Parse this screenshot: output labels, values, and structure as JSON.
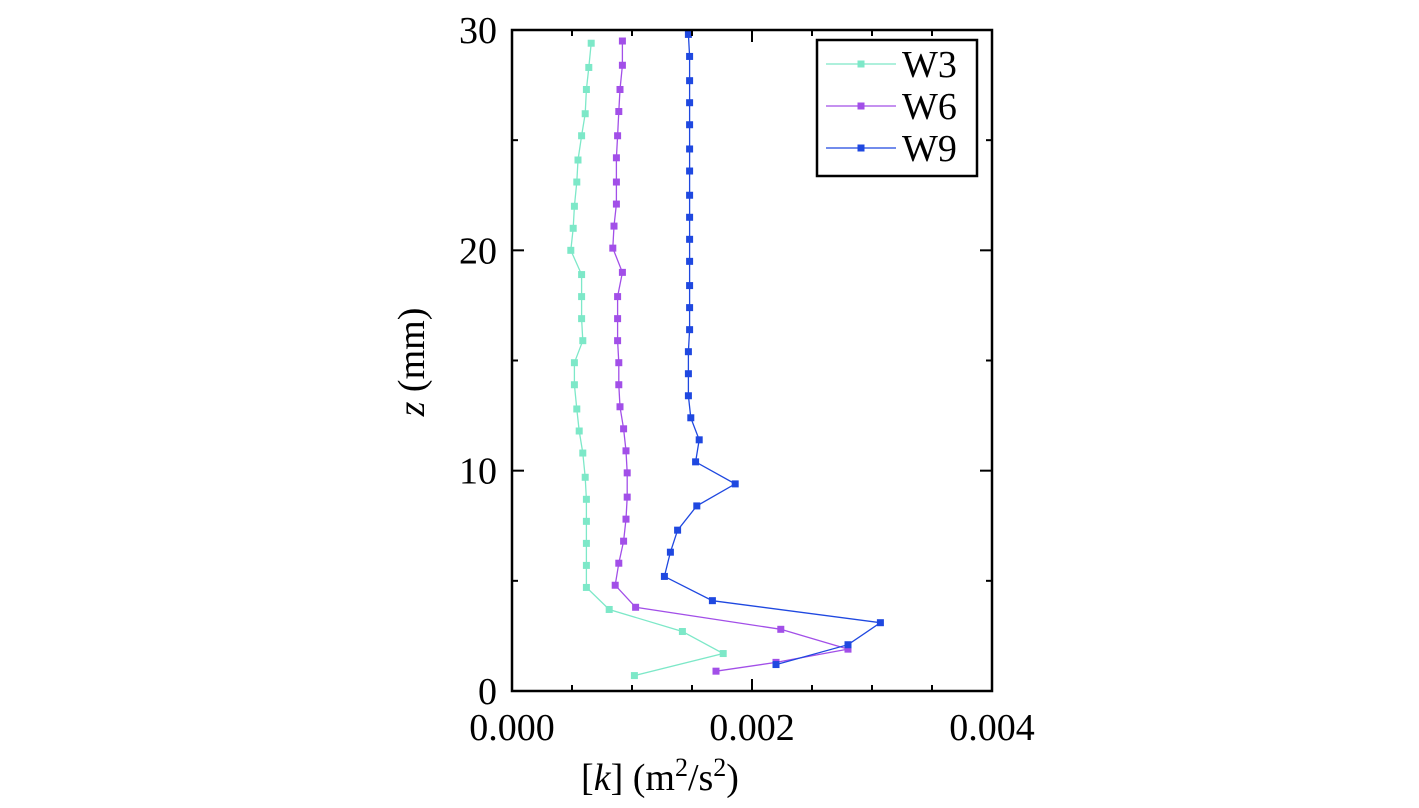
{
  "chart_data": {
    "type": "line",
    "title": "",
    "xlabel": "[k] (m2/s2)",
    "xlabel_parts": {
      "bracket_open": "[",
      "var": "k",
      "bracket_close": "]",
      "unit_open": " (m",
      "unit_sup1": "2",
      "unit_mid": "/s",
      "unit_sup2": "2",
      "unit_close": ")"
    },
    "ylabel": "z (mm)",
    "ylabel_parts": {
      "var": "z",
      "unit": " (mm)"
    },
    "xlim": [
      0.0,
      0.004
    ],
    "ylim": [
      0,
      30
    ],
    "x_ticks": [
      0.0,
      0.002,
      0.004
    ],
    "x_tick_labels": [
      "0.000",
      "0.002",
      "0.004"
    ],
    "y_ticks": [
      0,
      10,
      20,
      30
    ],
    "y_tick_labels": [
      "0",
      "10",
      "20",
      "30"
    ],
    "grid": false,
    "legend": "top-right",
    "series": [
      {
        "name": "W3",
        "color": "#7de8c8",
        "points": [
          [
            0.00102,
            0.7
          ],
          [
            0.00176,
            1.7
          ],
          [
            0.00142,
            2.7
          ],
          [
            0.00081,
            3.7
          ],
          [
            0.00062,
            4.7
          ],
          [
            0.00062,
            5.7
          ],
          [
            0.00062,
            6.7
          ],
          [
            0.00062,
            7.7
          ],
          [
            0.00062,
            8.7
          ],
          [
            0.00061,
            9.7
          ],
          [
            0.00059,
            10.8
          ],
          [
            0.00056,
            11.8
          ],
          [
            0.00054,
            12.8
          ],
          [
            0.00052,
            13.9
          ],
          [
            0.00052,
            14.9
          ],
          [
            0.00059,
            15.9
          ],
          [
            0.00058,
            16.9
          ],
          [
            0.00058,
            17.9
          ],
          [
            0.00058,
            18.9
          ],
          [
            0.00049,
            20.0
          ],
          [
            0.00051,
            21.0
          ],
          [
            0.00052,
            22.0
          ],
          [
            0.00054,
            23.1
          ],
          [
            0.00055,
            24.1
          ],
          [
            0.00058,
            25.2
          ],
          [
            0.00061,
            26.2
          ],
          [
            0.00062,
            27.3
          ],
          [
            0.00064,
            28.3
          ],
          [
            0.00066,
            29.4
          ]
        ]
      },
      {
        "name": "W6",
        "color": "#a24fe8",
        "points": [
          [
            0.0017,
            0.9
          ],
          [
            0.0022,
            1.3
          ],
          [
            0.0028,
            1.9
          ],
          [
            0.00224,
            2.8
          ],
          [
            0.00103,
            3.8
          ],
          [
            0.00086,
            4.8
          ],
          [
            0.00089,
            5.8
          ],
          [
            0.00093,
            6.8
          ],
          [
            0.00095,
            7.8
          ],
          [
            0.00096,
            8.8
          ],
          [
            0.00096,
            9.9
          ],
          [
            0.00095,
            10.9
          ],
          [
            0.00093,
            11.9
          ],
          [
            0.0009,
            12.9
          ],
          [
            0.00089,
            13.9
          ],
          [
            0.00089,
            14.9
          ],
          [
            0.00088,
            15.9
          ],
          [
            0.00088,
            16.9
          ],
          [
            0.00088,
            17.9
          ],
          [
            0.00092,
            19.0
          ],
          [
            0.00084,
            20.1
          ],
          [
            0.00085,
            21.1
          ],
          [
            0.00087,
            22.1
          ],
          [
            0.00087,
            23.1
          ],
          [
            0.00087,
            24.2
          ],
          [
            0.00088,
            25.2
          ],
          [
            0.00089,
            26.3
          ],
          [
            0.0009,
            27.3
          ],
          [
            0.00092,
            28.4
          ],
          [
            0.00092,
            29.5
          ]
        ]
      },
      {
        "name": "W9",
        "color": "#1f48e0",
        "points": [
          [
            0.0022,
            1.2
          ],
          [
            0.0028,
            2.1
          ],
          [
            0.00307,
            3.1
          ],
          [
            0.00167,
            4.1
          ],
          [
            0.00127,
            5.2
          ],
          [
            0.00132,
            6.3
          ],
          [
            0.00138,
            7.3
          ],
          [
            0.00154,
            8.4
          ],
          [
            0.00186,
            9.4
          ],
          [
            0.00153,
            10.4
          ],
          [
            0.00156,
            11.4
          ],
          [
            0.00149,
            12.4
          ],
          [
            0.00147,
            13.4
          ],
          [
            0.00147,
            14.4
          ],
          [
            0.00147,
            15.4
          ],
          [
            0.00148,
            16.4
          ],
          [
            0.00148,
            17.4
          ],
          [
            0.00148,
            18.4
          ],
          [
            0.00148,
            19.5
          ],
          [
            0.00148,
            20.5
          ],
          [
            0.00148,
            21.5
          ],
          [
            0.00148,
            22.5
          ],
          [
            0.00148,
            23.6
          ],
          [
            0.00148,
            24.6
          ],
          [
            0.00148,
            25.7
          ],
          [
            0.00148,
            26.7
          ],
          [
            0.00148,
            27.7
          ],
          [
            0.00148,
            28.8
          ],
          [
            0.00147,
            29.8
          ]
        ]
      }
    ]
  }
}
